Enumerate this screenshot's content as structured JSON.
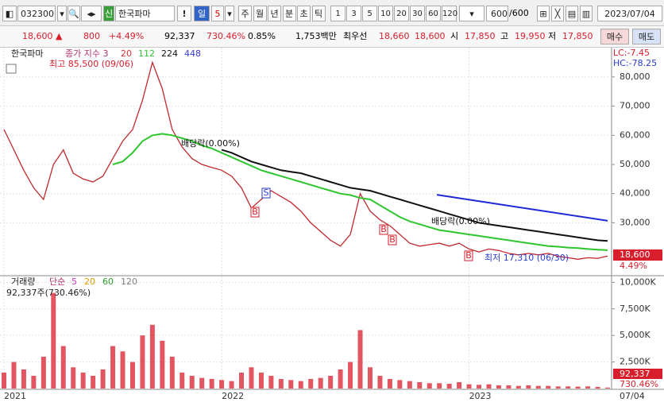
{
  "toolbar": {
    "code": "032300",
    "badge": "신",
    "name": "한국파마",
    "alert": "!",
    "period": [
      "일",
      "5"
    ],
    "units": [
      "주",
      "월",
      "년",
      "분",
      "초",
      "틱"
    ],
    "counts": [
      "1",
      "3",
      "5",
      "10",
      "20",
      "30",
      "60",
      "120"
    ],
    "view": "600",
    "view_total": "/600",
    "date": "2023/07/04"
  },
  "quote": {
    "price": "18,600 ▲",
    "change": "800",
    "rate": "+4.49%",
    "volume": "92,337",
    "volume_rate": "730.46%",
    "turnover": "0.85%",
    "amount": "1,753백만",
    "best_label": "최우선",
    "ask": "18,660",
    "bid": "18,600",
    "open_label": "시",
    "open": "17,850",
    "high_label": "고",
    "high": "19,950",
    "low_label": "저",
    "low": "17,850",
    "buy": "매수",
    "sell": "매도"
  },
  "chart_data": {
    "type": "line",
    "title": "한국파마",
    "subtitle": "종가 지수 3",
    "ma_legend": [
      {
        "name": "20",
        "color": "#e0303a"
      },
      {
        "name": "112",
        "color": "#2ec52e"
      },
      {
        "name": "224",
        "color": "#111111"
      },
      {
        "name": "448",
        "color": "#3a3ad8"
      }
    ],
    "categories": [
      "2021",
      null,
      null,
      null,
      null,
      null,
      null,
      null,
      null,
      null,
      null,
      null,
      null,
      null,
      null,
      null,
      null,
      null,
      null,
      null,
      null,
      null,
      "2022",
      null,
      null,
      null,
      null,
      null,
      null,
      null,
      null,
      null,
      null,
      null,
      null,
      null,
      null,
      null,
      null,
      null,
      null,
      null,
      null,
      null,
      null,
      null,
      null,
      "2023",
      null,
      null,
      null,
      null,
      null,
      null,
      null,
      null,
      null,
      null,
      null,
      null,
      null,
      null
    ],
    "x_end_label": "07/04",
    "series": [
      {
        "name": "종가",
        "color": "#c0282f",
        "values": [
          62000,
          55000,
          48000,
          42000,
          38000,
          50000,
          55000,
          47000,
          45000,
          44000,
          46000,
          52000,
          58000,
          62000,
          72000,
          85000,
          76000,
          62000,
          56000,
          52000,
          50000,
          49000,
          48000,
          46000,
          42000,
          35000,
          38000,
          41000,
          39000,
          37000,
          34000,
          30000,
          27000,
          24000,
          22000,
          26000,
          40000,
          34000,
          31000,
          29000,
          26000,
          23000,
          22000,
          22500,
          23000,
          22000,
          23000,
          21000,
          20000,
          21000,
          20500,
          19500,
          19000,
          19500,
          19000,
          19500,
          18500,
          18000,
          17500,
          18000,
          17800,
          18600
        ]
      },
      {
        "name": "112",
        "color": "#2ec52e",
        "values": [
          null,
          null,
          null,
          null,
          null,
          null,
          null,
          null,
          null,
          null,
          null,
          50000,
          51000,
          54000,
          58000,
          60000,
          60500,
          60000,
          59000,
          58000,
          56500,
          55500,
          54000,
          52500,
          51000,
          49500,
          48000,
          47000,
          46000,
          45000,
          44000,
          43000,
          42000,
          41000,
          40000,
          39500,
          38500,
          38000,
          36000,
          34000,
          32000,
          30500,
          29500,
          28500,
          27500,
          27000,
          26500,
          26000,
          25500,
          25000,
          24500,
          24000,
          23500,
          23000,
          22500,
          22000,
          21800,
          21500,
          21300,
          21000,
          20800,
          20600
        ]
      },
      {
        "name": "224",
        "color": "#111111",
        "values": [
          null,
          null,
          null,
          null,
          null,
          null,
          null,
          null,
          null,
          null,
          null,
          null,
          null,
          null,
          null,
          null,
          null,
          null,
          null,
          null,
          null,
          null,
          55000,
          54000,
          52500,
          51000,
          50000,
          49000,
          48000,
          47500,
          47000,
          46000,
          45000,
          44000,
          43000,
          42000,
          41500,
          41000,
          40000,
          39000,
          38000,
          37000,
          36000,
          35000,
          34000,
          33000,
          32000,
          31000,
          30000,
          29500,
          29000,
          28500,
          28000,
          27500,
          27000,
          26500,
          26000,
          25500,
          25000,
          24500,
          24000,
          23800
        ]
      }
    ],
    "trendline": {
      "color": "#1e28d8",
      "values": [
        39600,
        30700
      ]
    },
    "ylim": [
      12400,
      89500
    ],
    "yticks": [
      {
        "value": 30000,
        "label": "30,000"
      },
      {
        "value": 40000,
        "label": "40,000"
      },
      {
        "value": 50000,
        "label": "50,000"
      },
      {
        "value": 60000,
        "label": "60,000"
      },
      {
        "value": 70000,
        "label": "70,000"
      },
      {
        "value": 80000,
        "label": "80,000"
      }
    ],
    "annotations": {
      "high": "최고 85,500 (09/06)",
      "low": "최저 17,310 (06/30)",
      "exdiv1": "배당락(0.00%)",
      "exdiv2": "배당락(0.00%)",
      "lc": "LC:-7.45",
      "hc": "HC:-78.25",
      "last_price": "18,600",
      "last_rate": "4.49%"
    },
    "signals": [
      "S",
      "B",
      "B",
      "B",
      "B"
    ],
    "volume": {
      "title": "거래량",
      "ma_title": "단순",
      "ma_legend": [
        {
          "name": "5",
          "color": "#c03cc0"
        },
        {
          "name": "20",
          "color": "#d8a000"
        },
        {
          "name": "60",
          "color": "#2a9a2a"
        },
        {
          "name": "120",
          "color": "#808080"
        }
      ],
      "info": "92,337주(730.46%)",
      "last": "92,337",
      "last_rate": "730.46%",
      "color": "#d81e2c",
      "values": [
        1500,
        2500,
        1800,
        1200,
        3000,
        9000,
        4000,
        2000,
        1500,
        1200,
        1800,
        4000,
        3500,
        2500,
        5000,
        6000,
        4500,
        3000,
        1500,
        1200,
        1000,
        900,
        800,
        700,
        1500,
        2000,
        1500,
        1200,
        900,
        800,
        700,
        900,
        1000,
        1200,
        1800,
        2500,
        5500,
        2000,
        1200,
        900,
        800,
        700,
        600,
        500,
        500,
        450,
        600,
        400,
        350,
        400,
        300,
        300,
        250,
        300,
        250,
        250,
        200,
        200,
        180,
        200,
        150,
        92
      ],
      "ylim": [
        0,
        10400
      ],
      "yticks": [
        {
          "value": 2500,
          "label": "2,500K"
        },
        {
          "value": 5000,
          "label": "5,000K"
        },
        {
          "value": 7500,
          "label": "7,500K"
        },
        {
          "value": 10000,
          "label": "10,000K"
        }
      ]
    }
  }
}
